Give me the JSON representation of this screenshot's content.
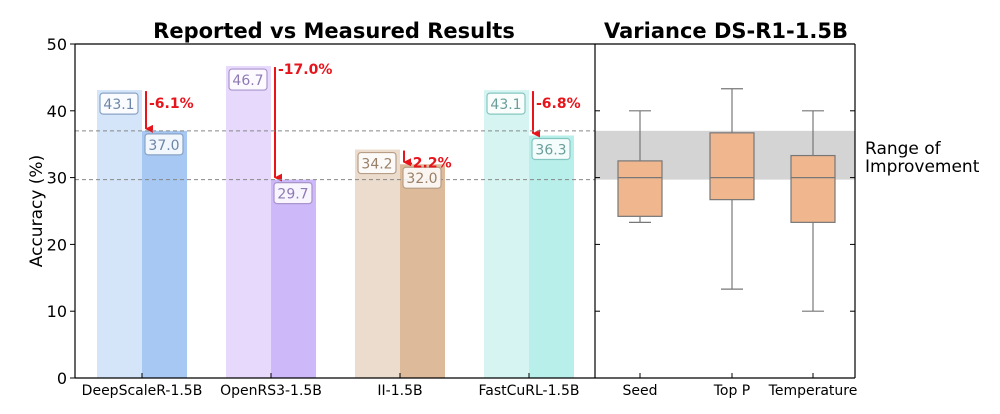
{
  "colors": {
    "deepscaler_reported": "#d4e4f9",
    "deepscaler_measured": "#a6c8f2",
    "openrs_reported": "#e6d9fc",
    "openrs_measured": "#cdb8fa",
    "ii_reported": "#ecdccd",
    "ii_measured": "#ddbb9a",
    "fastcurl_reported": "#d6f5f2",
    "fastcurl_measured": "#b9efea",
    "drop_arrow": "#e8141c",
    "box_fill": "#f0b78f",
    "range_band": "#d4d4d4",
    "ref_line": "#888888"
  },
  "icons": [
    "down-arrow-icon"
  ],
  "chart_data": [
    {
      "type": "bar",
      "title": "Reported vs Measured Results",
      "ylabel": "Accuracy (%)",
      "xlabel": "",
      "ylim": [
        0,
        50
      ],
      "yticks": [
        "0",
        "10",
        "20",
        "30",
        "40",
        "50"
      ],
      "categories": [
        "DeepScaleR-1.5B",
        "OpenRS3-1.5B",
        "II-1.5B",
        "FastCuRL-1.5B"
      ],
      "series": [
        {
          "name": "Reported",
          "values": [
            43.1,
            46.7,
            34.2,
            43.1
          ],
          "labels": [
            "43.1",
            "46.7",
            "34.2",
            "43.1"
          ]
        },
        {
          "name": "Measured",
          "values": [
            37.0,
            29.7,
            32.0,
            36.3
          ],
          "labels": [
            "37.0",
            "29.7",
            "32.0",
            "36.3"
          ]
        }
      ],
      "drops": [
        "-6.1%",
        "-17.0%",
        "-2.2%",
        "-6.8%"
      ],
      "reference_lines": [
        37.0,
        29.7
      ]
    },
    {
      "type": "box",
      "title": "Variance DS-R1-1.5B",
      "ylim": [
        0,
        50
      ],
      "categories": [
        "Seed",
        "Top P",
        "Temperature"
      ],
      "boxes": [
        {
          "name": "Seed",
          "whisker_low": 23.3,
          "q1": 24.2,
          "median": 30.0,
          "q3": 32.5,
          "whisker_high": 40.0
        },
        {
          "name": "Top P",
          "whisker_low": 13.3,
          "q1": 26.7,
          "median": 30.0,
          "q3": 36.7,
          "whisker_high": 43.3
        },
        {
          "name": "Temperature",
          "whisker_low": 10.0,
          "q1": 23.3,
          "median": 30.0,
          "q3": 33.3,
          "whisker_high": 40.0
        }
      ],
      "range_band": [
        29.7,
        37.0
      ],
      "range_label": [
        "Range of",
        "Improvement"
      ]
    }
  ]
}
